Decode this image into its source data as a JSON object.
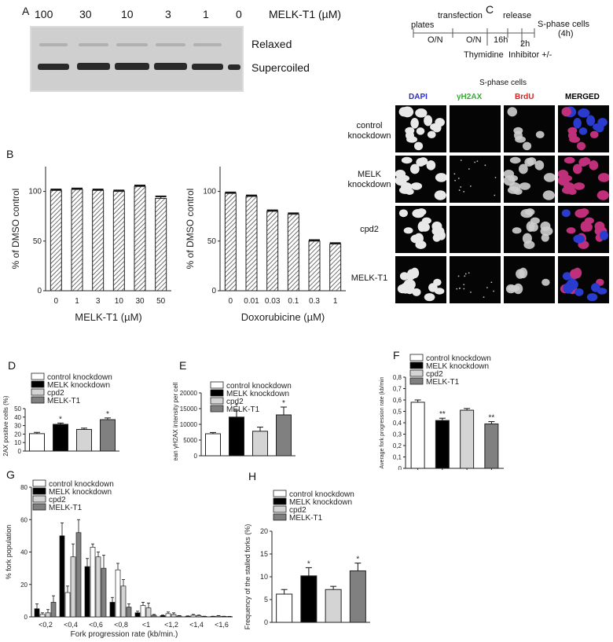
{
  "panels": {
    "A": {
      "letter": "A",
      "concentrations": [
        "100",
        "30",
        "10",
        "3",
        "1",
        "0"
      ],
      "unit_label": "MELK-T1 (µM)",
      "band_relaxed": "Relaxed",
      "band_supercoiled": "Supercoiled"
    },
    "B": {
      "letter": "B"
    },
    "C": {
      "letter": "C",
      "timeline": {
        "plates": "plates",
        "transfection": "transfection",
        "release": "release",
        "sphase": "S-phase cells",
        "sphase_dur": "(4h)",
        "on1": "O/N",
        "on2": "O/N",
        "h16": "16h",
        "h2": "2h",
        "thymidine": "Thymidine",
        "inhibitor": "Inhibitor +/-"
      },
      "micro_title": "S-phase cells",
      "columns": [
        {
          "label": "DAPI",
          "color": "#2b2bd9"
        },
        {
          "label": "γH2AX",
          "color": "#2fb02f"
        },
        {
          "label": "BrdU",
          "color": "#e02020"
        },
        {
          "label": "MERGED",
          "color": "#000000"
        }
      ],
      "rows": [
        {
          "line1": "control",
          "line2": "knockdown"
        },
        {
          "line1": "MELK",
          "line2": "knockdown"
        },
        {
          "line1": "cpd2",
          "line2": ""
        },
        {
          "line1": "MELK-T1",
          "line2": ""
        }
      ]
    },
    "D": {
      "letter": "D"
    },
    "E": {
      "letter": "E"
    },
    "F": {
      "letter": "F"
    },
    "G": {
      "letter": "G"
    },
    "H": {
      "letter": "H"
    }
  },
  "legend_items": [
    "control knockdown",
    "MELK knockdown",
    "cpd2",
    "MELK-T1"
  ],
  "legend_colors": [
    "#ffffff",
    "#000000",
    "#d4d4d4",
    "#808080"
  ],
  "chart_data": [
    {
      "id": "B1",
      "type": "bar",
      "categories": [
        "0",
        "1",
        "3",
        "10",
        "30",
        "50"
      ],
      "values": [
        101,
        102,
        101,
        100,
        105,
        93
      ],
      "errors": [
        1,
        1,
        1,
        1,
        1,
        2
      ],
      "xlabel": "MELK-T1 (µM)",
      "ylabel": "% of DMSO control",
      "ylim": [
        0,
        125
      ],
      "yticks": [
        0,
        50,
        100
      ],
      "fill": "hatch"
    },
    {
      "id": "B2",
      "type": "bar",
      "categories": [
        "0",
        "0.01",
        "0.03",
        "0.1",
        "0.3",
        "1"
      ],
      "values": [
        98,
        95,
        80,
        77,
        50,
        47
      ],
      "errors": [
        1,
        1,
        1,
        1,
        1,
        1
      ],
      "xlabel": "Doxorubicine (µM)",
      "ylabel": "% of DMSO control",
      "ylim": [
        0,
        125
      ],
      "yticks": [
        0,
        50,
        100
      ],
      "fill": "hatch"
    },
    {
      "id": "D",
      "type": "bar",
      "categories": [
        "control knockdown",
        "MELK knockdown",
        "cpd2",
        "MELK-T1"
      ],
      "values": [
        20.5,
        31.5,
        25.5,
        37
      ],
      "errors": [
        1.5,
        1.5,
        1.5,
        2
      ],
      "significance": [
        "",
        "*",
        "",
        "*"
      ],
      "ylabel": "γH2AX positive cells (%)",
      "ylim": [
        0,
        50
      ],
      "yticks": [
        0,
        10,
        20,
        30,
        40,
        50
      ]
    },
    {
      "id": "E",
      "type": "bar",
      "categories": [
        "control knockdown",
        "MELK knockdown",
        "cpd2",
        "MELK-T1"
      ],
      "values": [
        7000,
        12300,
        7800,
        13000
      ],
      "errors": [
        400,
        2200,
        1300,
        2500
      ],
      "significance": [
        "",
        "*",
        "",
        "*"
      ],
      "ylabel": "Mean γH2AX intensity per cell",
      "ylim": [
        0,
        20000
      ],
      "yticks": [
        0,
        5000,
        10000,
        15000,
        20000
      ]
    },
    {
      "id": "F",
      "type": "bar",
      "categories": [
        "control knockdown",
        "MELK knockdown",
        "cpd2",
        "MELK-T1"
      ],
      "values": [
        0.58,
        0.42,
        0.51,
        0.39
      ],
      "errors": [
        0.02,
        0.02,
        0.015,
        0.02
      ],
      "significance": [
        "",
        "**",
        "",
        "**"
      ],
      "ylabel": "Average fork progression rate (kb/min",
      "ylim": [
        0,
        0.8
      ],
      "yticks": [
        0,
        0.1,
        0.2,
        0.3,
        0.4,
        0.5,
        0.6,
        0.7,
        0.8
      ],
      "ytick_labels": [
        "0",
        "0,1",
        "0,2",
        "0,3",
        "0,4",
        "0,5",
        "0,6",
        "0,7",
        "0,8"
      ]
    },
    {
      "id": "G",
      "type": "bar",
      "categories": [
        "<0,2",
        "<0,4",
        "<0,6",
        "<0,8",
        "<1",
        "<1,2",
        "<1,4",
        "<1,6"
      ],
      "series": [
        {
          "name": "control knockdown",
          "values": [
            1.5,
            15,
            43,
            29,
            7,
            2,
            1,
            0.5
          ],
          "errors": [
            1,
            4,
            2,
            4,
            2,
            1,
            0.5,
            0.3
          ]
        },
        {
          "name": "MELK knockdown",
          "values": [
            5,
            50,
            31,
            9,
            2.5,
            0.8,
            0.4,
            0.3
          ],
          "errors": [
            3,
            8,
            5,
            3,
            1,
            0.3,
            0.2,
            0.1
          ]
        },
        {
          "name": "cpd2",
          "values": [
            2.5,
            37,
            37,
            19,
            5.5,
            1.5,
            0.8,
            0.3
          ],
          "errors": [
            2,
            8,
            3,
            4,
            3,
            1,
            0.3,
            0.1
          ]
        },
        {
          "name": "MELK-T1",
          "values": [
            9,
            52,
            30,
            6,
            1,
            0.6,
            0.3,
            0.2
          ],
          "errors": [
            4,
            8,
            8,
            2,
            0.5,
            0.2,
            0.1,
            0.1
          ]
        }
      ],
      "xlabel": "Fork progression rate (kb/min.)",
      "ylabel": "% fork population",
      "ylim": [
        0,
        80
      ],
      "yticks": [
        0,
        20,
        40,
        60,
        80
      ]
    },
    {
      "id": "H",
      "type": "bar",
      "categories": [
        "control knockdown",
        "MELK knockdown",
        "cpd2",
        "MELK-T1"
      ],
      "values": [
        6.2,
        10.2,
        7.2,
        11.3
      ],
      "errors": [
        1,
        1.8,
        0.7,
        1.7
      ],
      "significance": [
        "",
        "*",
        "",
        "*"
      ],
      "ylabel": "Frequency of the stalled forks (%)",
      "ylim": [
        0,
        20
      ],
      "yticks": [
        0,
        5,
        10,
        15,
        20
      ]
    }
  ]
}
